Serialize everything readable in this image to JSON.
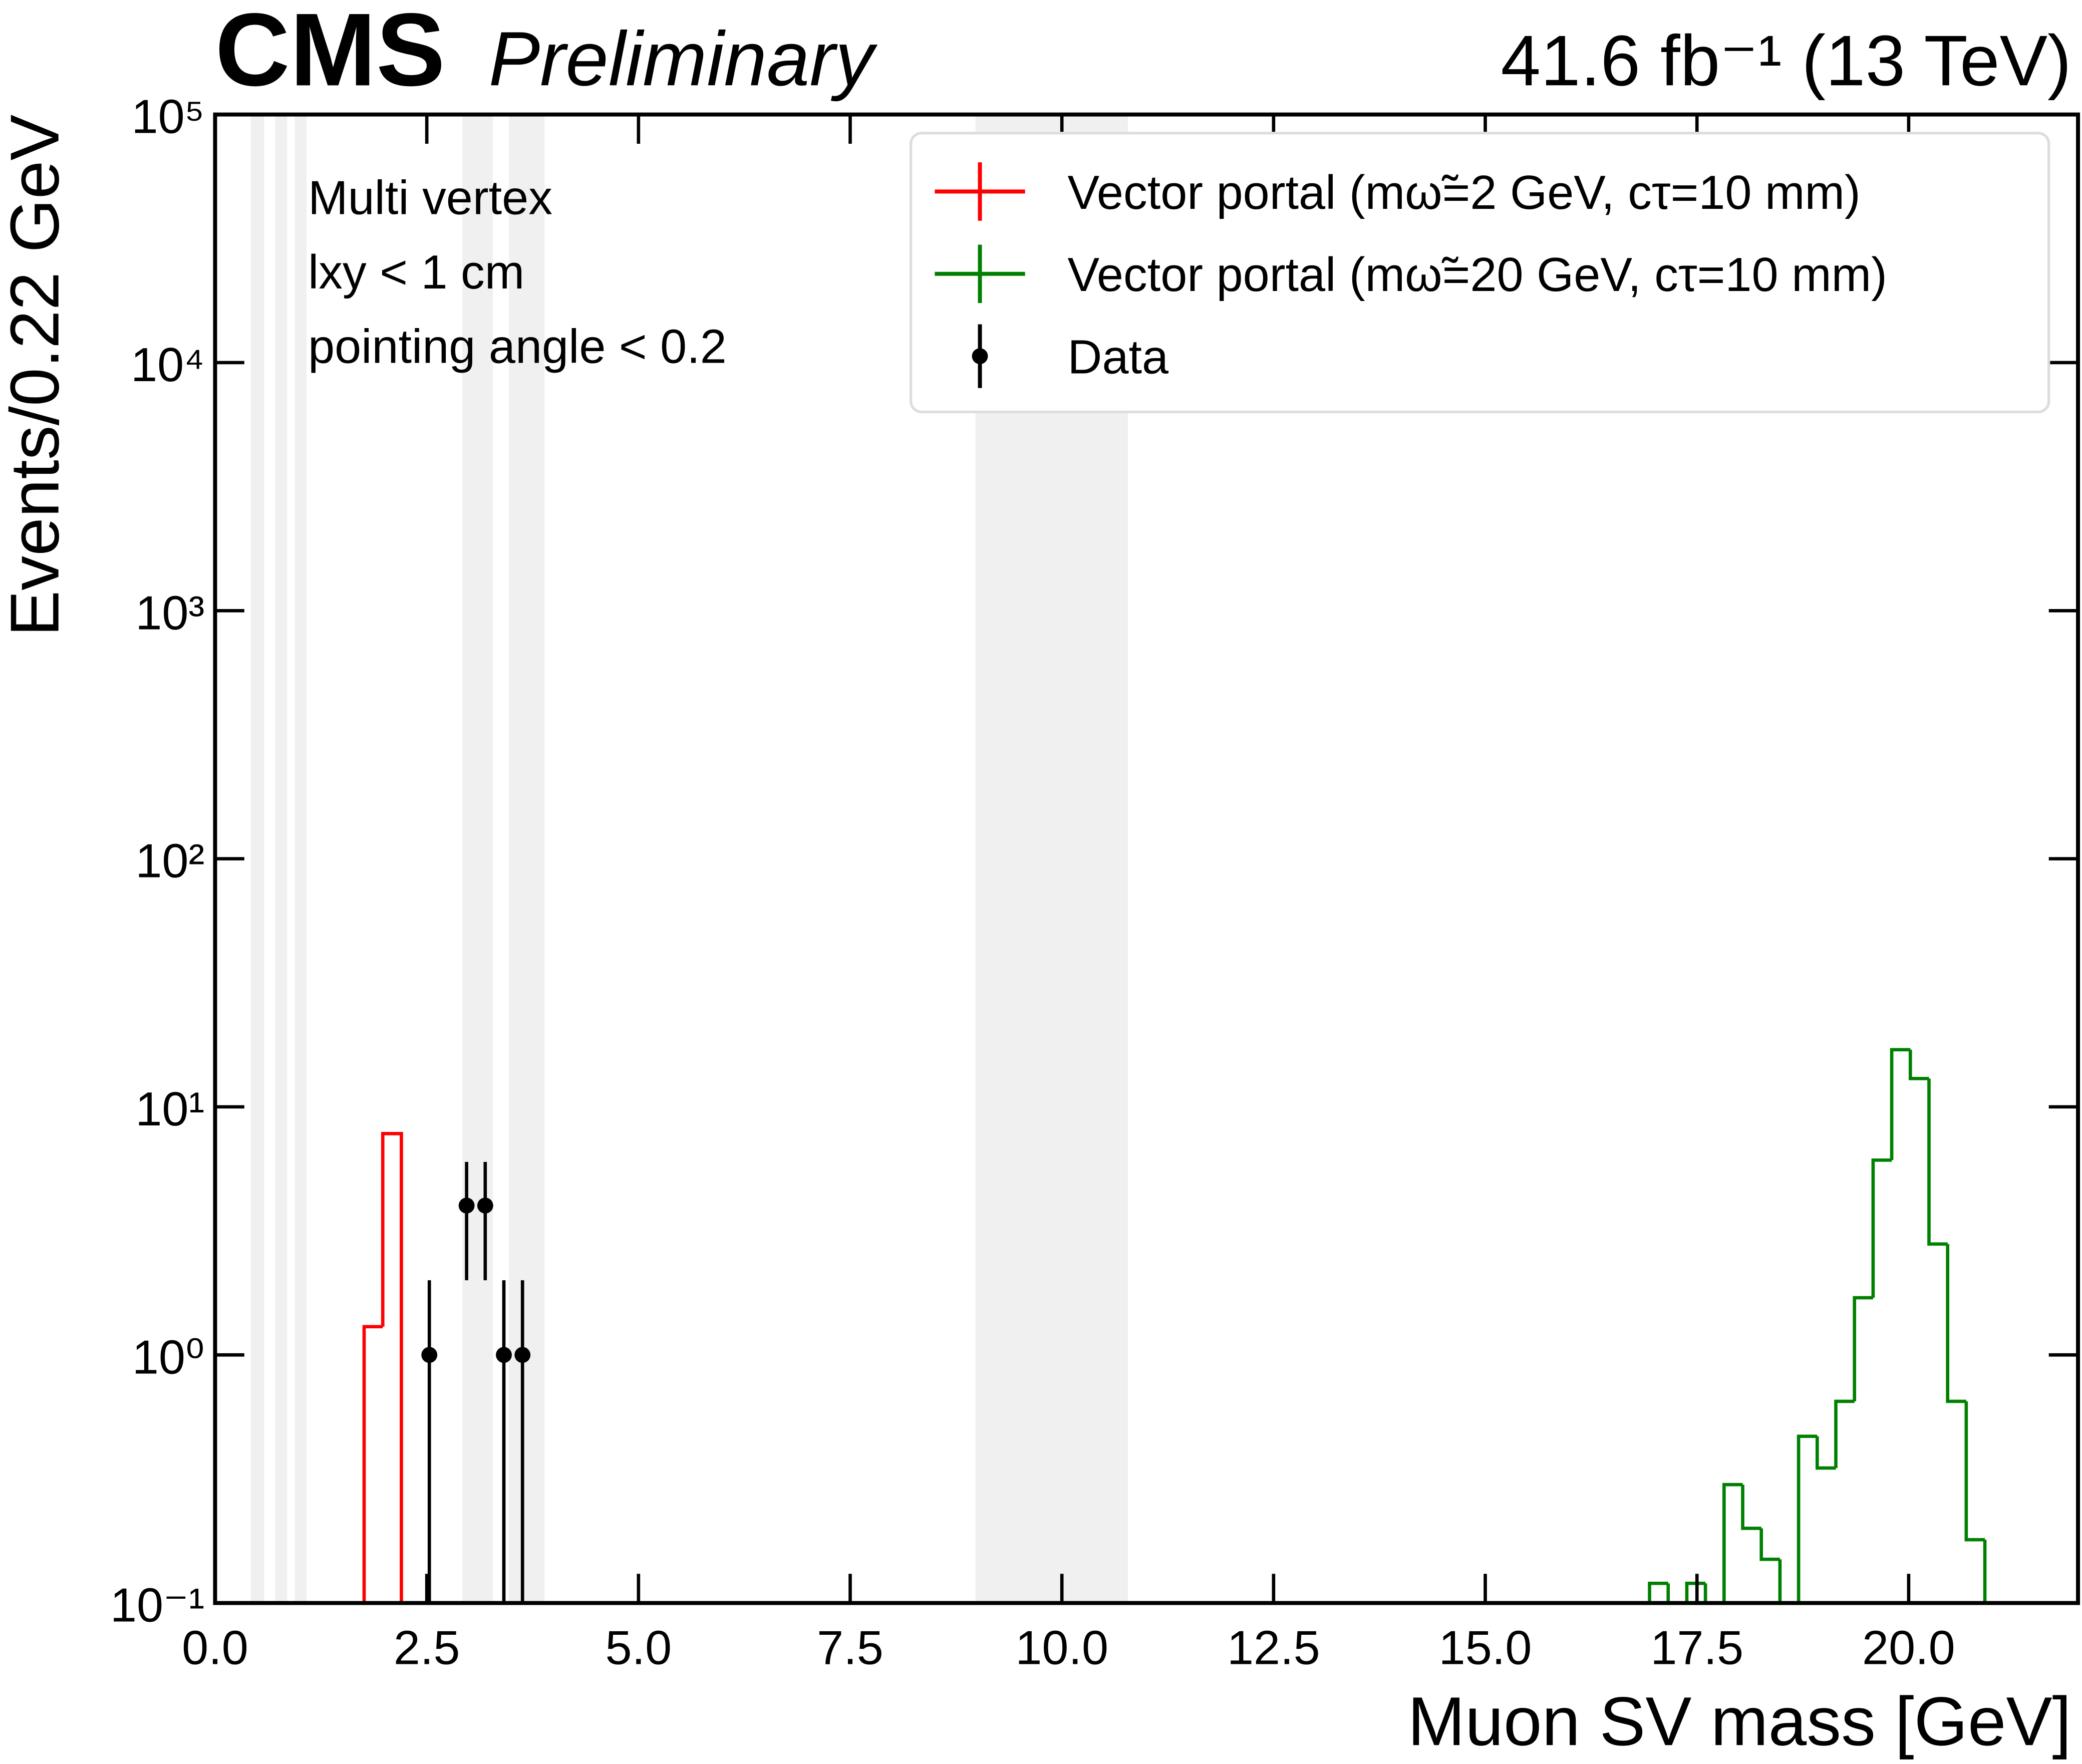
{
  "chart_data": {
    "type": "histogram",
    "experiment": "CMS",
    "status": "Preliminary",
    "lumi": "41.6 fb⁻¹ (13 TeV)",
    "x_label": "Muon SV mass [GeV]",
    "y_label": "Events/0.22 GeV",
    "annotations": [
      "Multi vertex",
      "lxy < 1 cm",
      "pointing angle < 0.2"
    ],
    "xlim": [
      0,
      22
    ],
    "ylim": [
      0.1,
      100000
    ],
    "log_y": true,
    "legend": "upper right",
    "xticks": [
      {
        "value": 0,
        "label": "0.0"
      },
      {
        "value": 2.5,
        "label": "2.5"
      },
      {
        "value": 5,
        "label": "5.0"
      },
      {
        "value": 7.5,
        "label": "7.5"
      },
      {
        "value": 10,
        "label": "10.0"
      },
      {
        "value": 12.5,
        "label": "12.5"
      },
      {
        "value": 15,
        "label": "15.0"
      },
      {
        "value": 17.5,
        "label": "17.5"
      },
      {
        "value": 20,
        "label": "20.0"
      }
    ],
    "yticks": [
      {
        "value": 0.1,
        "label": "10⁻¹"
      },
      {
        "value": 1,
        "label": "10⁰"
      },
      {
        "value": 10,
        "label": "10¹"
      },
      {
        "value": 100,
        "label": "10²"
      },
      {
        "value": 1000,
        "label": "10³"
      },
      {
        "value": 10000,
        "label": "10⁴"
      },
      {
        "value": 100000,
        "label": "10⁵"
      }
    ],
    "shaded_regions": [
      [
        0.42,
        0.58
      ],
      [
        0.71,
        0.85
      ],
      [
        0.94,
        1.08
      ],
      [
        2.92,
        3.28
      ],
      [
        3.47,
        3.89
      ],
      [
        8.98,
        10.78
      ]
    ],
    "shade_color": "#f0f0f0",
    "series": [
      {
        "name": "Vector portal (mω̃=2 GeV, cτ=10 mm)",
        "type": "step",
        "color": "#ff0000",
        "bins": [
          1.76,
          1.98,
          2.2
        ],
        "values": [
          1.3,
          7.8
        ]
      },
      {
        "name": "Vector portal (mω̃=20 GeV, cτ=10 mm)",
        "type": "step",
        "color": "#008000",
        "bins": [
          16.94,
          17.16,
          17.38,
          17.6,
          17.82,
          18.04,
          18.26,
          18.48,
          18.7,
          18.92,
          19.14,
          19.36,
          19.58,
          19.8,
          20.02,
          20.24,
          20.46,
          20.68,
          20.9,
          21.12
        ],
        "values": [
          0.12,
          0,
          0.12,
          0,
          0.3,
          0.2,
          0.15,
          0,
          0.47,
          0.35,
          0.65,
          1.7,
          6.1,
          17,
          13,
          2.8,
          0.65,
          0.18,
          0.1
        ]
      },
      {
        "name": "Data",
        "type": "errorbar",
        "color": "#000000",
        "x": [
          2.53,
          2.97,
          3.19,
          3.41,
          3.63
        ],
        "values": [
          1,
          4,
          4,
          1,
          1
        ],
        "errors": [
          1,
          2,
          2,
          1,
          1
        ]
      }
    ]
  }
}
